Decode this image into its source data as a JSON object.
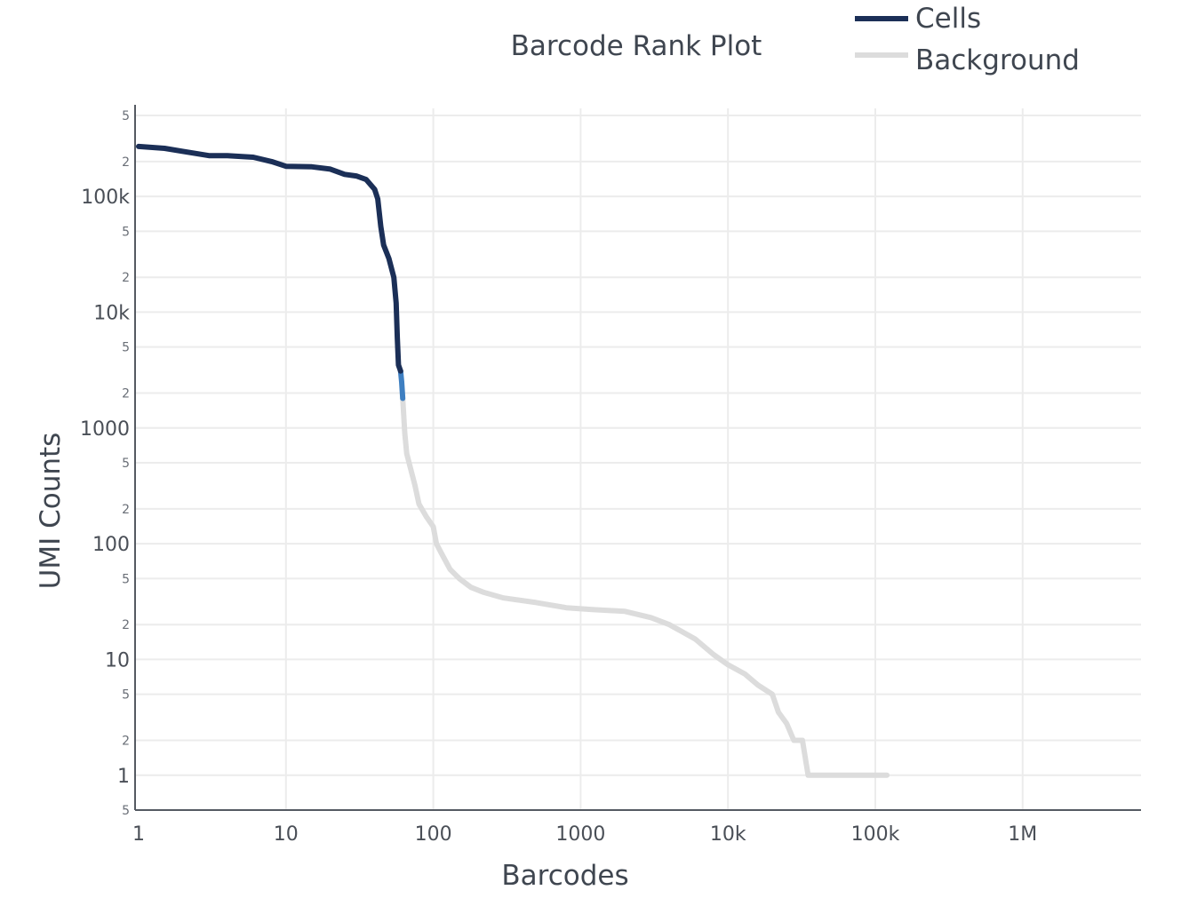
{
  "chart_data": {
    "type": "line",
    "title": "Barcode Rank Plot",
    "xlabel": "Barcodes",
    "ylabel": "UMI Counts",
    "x_scale": "log",
    "y_scale": "log",
    "xlim": [
      1,
      7000000
    ],
    "ylim": [
      0.5,
      500000
    ],
    "grid": true,
    "legend_position": "top-right",
    "x_ticks": [
      {
        "value": 1,
        "label": "1"
      },
      {
        "value": 10,
        "label": "10"
      },
      {
        "value": 100,
        "label": "100"
      },
      {
        "value": 1000,
        "label": "1000"
      },
      {
        "value": 10000,
        "label": "10k"
      },
      {
        "value": 100000,
        "label": "100k"
      },
      {
        "value": 1000000,
        "label": "1M"
      }
    ],
    "y_major_ticks": [
      {
        "value": 1,
        "label": "1"
      },
      {
        "value": 10,
        "label": "10"
      },
      {
        "value": 100,
        "label": "100"
      },
      {
        "value": 1000,
        "label": "1000"
      },
      {
        "value": 10000,
        "label": "10k"
      },
      {
        "value": 100000,
        "label": "100k"
      }
    ],
    "y_minor_ticks": [
      {
        "value": 500000,
        "label": "5"
      },
      {
        "value": 200000,
        "label": "2"
      },
      {
        "value": 50000,
        "label": "5"
      },
      {
        "value": 20000,
        "label": "2"
      },
      {
        "value": 5000,
        "label": "5"
      },
      {
        "value": 2000,
        "label": "2"
      },
      {
        "value": 500,
        "label": "5"
      },
      {
        "value": 200,
        "label": "2"
      },
      {
        "value": 50,
        "label": "5"
      },
      {
        "value": 20,
        "label": "2"
      },
      {
        "value": 5,
        "label": "5"
      },
      {
        "value": 2,
        "label": "2"
      },
      {
        "value": 0.5,
        "label": "5"
      }
    ],
    "series": [
      {
        "name": "Cells",
        "color": "#1b2f57",
        "points": [
          [
            1,
            270000
          ],
          [
            1.5,
            260000
          ],
          [
            2,
            245000
          ],
          [
            3,
            225000
          ],
          [
            4,
            225000
          ],
          [
            6,
            218000
          ],
          [
            8,
            200000
          ],
          [
            10,
            182000
          ],
          [
            15,
            180000
          ],
          [
            20,
            172000
          ],
          [
            25,
            155000
          ],
          [
            30,
            150000
          ],
          [
            35,
            140000
          ],
          [
            40,
            115000
          ],
          [
            42,
            95000
          ],
          [
            44,
            55000
          ],
          [
            46,
            38000
          ],
          [
            50,
            29000
          ],
          [
            54,
            20000
          ],
          [
            56,
            12000
          ],
          [
            57,
            6000
          ],
          [
            58,
            3500
          ],
          [
            60,
            3100
          ]
        ]
      },
      {
        "name": "",
        "color": "#3e7fc1",
        "points": [
          [
            60,
            3100
          ],
          [
            61,
            2500
          ],
          [
            62,
            1800
          ]
        ]
      },
      {
        "name": "Background",
        "color": "#dcdcdc",
        "points": [
          [
            62,
            1800
          ],
          [
            64,
            900
          ],
          [
            66,
            600
          ],
          [
            70,
            450
          ],
          [
            75,
            320
          ],
          [
            80,
            220
          ],
          [
            90,
            170
          ],
          [
            100,
            140
          ],
          [
            105,
            100
          ],
          [
            115,
            80
          ],
          [
            130,
            60
          ],
          [
            150,
            50
          ],
          [
            180,
            42
          ],
          [
            220,
            38
          ],
          [
            300,
            34
          ],
          [
            500,
            31
          ],
          [
            800,
            28
          ],
          [
            1200,
            27
          ],
          [
            2000,
            26
          ],
          [
            3000,
            23
          ],
          [
            4000,
            20
          ],
          [
            6000,
            15
          ],
          [
            8000,
            11
          ],
          [
            10000,
            9
          ],
          [
            13000,
            7.5
          ],
          [
            16000,
            6
          ],
          [
            20000,
            5
          ],
          [
            22000,
            3.5
          ],
          [
            25000,
            2.8
          ],
          [
            28000,
            2
          ],
          [
            32000,
            2
          ],
          [
            35000,
            1
          ],
          [
            60000,
            1
          ],
          [
            100000,
            1
          ],
          [
            120000,
            1
          ]
        ]
      }
    ],
    "legend": [
      {
        "label": "Cells",
        "color": "#1b2f57"
      },
      {
        "label": "Background",
        "color": "#dcdcdc"
      }
    ]
  }
}
